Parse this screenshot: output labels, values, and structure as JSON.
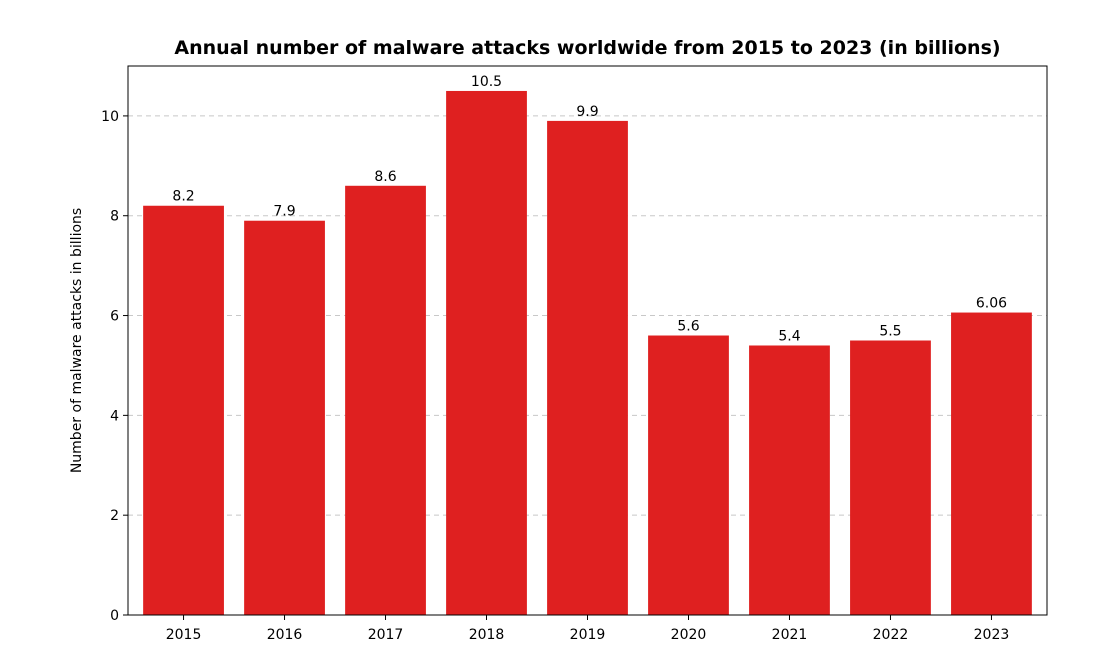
{
  "chart_data": {
    "type": "bar",
    "title": "Annual number of malware attacks worldwide from 2015 to 2023 (in billions)",
    "xlabel": "",
    "ylabel": "Number of malware attacks in billions",
    "categories": [
      "2015",
      "2016",
      "2017",
      "2018",
      "2019",
      "2020",
      "2021",
      "2022",
      "2023"
    ],
    "values": [
      8.2,
      7.9,
      8.6,
      10.5,
      9.9,
      5.6,
      5.4,
      5.5,
      6.06
    ],
    "value_labels": [
      "8.2",
      "7.9",
      "8.6",
      "10.5",
      "9.9",
      "5.6",
      "5.4",
      "5.5",
      "6.06"
    ],
    "ylim": [
      0,
      11
    ],
    "yticks": [
      0,
      2,
      4,
      6,
      8,
      10
    ],
    "grid": "y-dashed",
    "legend": "none",
    "bar_color": "#df2020"
  }
}
